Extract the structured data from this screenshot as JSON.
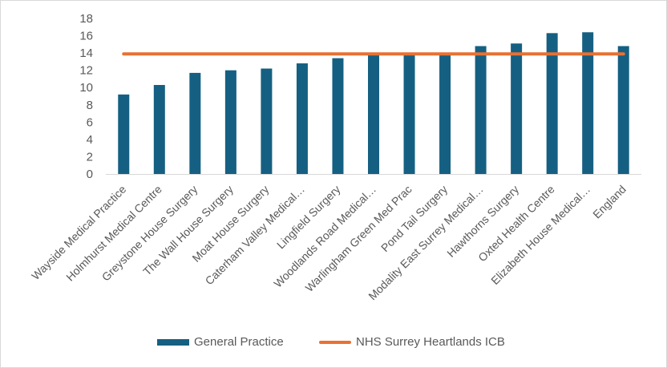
{
  "chart_data": {
    "type": "bar",
    "title": "",
    "xlabel": "",
    "ylabel": "",
    "ylim": [
      0,
      18
    ],
    "yticks": [
      0,
      2,
      4,
      6,
      8,
      10,
      12,
      14,
      16,
      18
    ],
    "grid": false,
    "legend_position": "bottom",
    "categories": [
      "Wayside Medical Practice",
      "Holmhurst Medical Centre",
      "Greystone House Surgery",
      "The Wall House Surgery",
      "Moat House Surgery",
      "Caterham Valley Medical…",
      "Lingfield Surgery",
      "Woodlands Road Medical…",
      "Warlingham Green Med Prac",
      "Pond Tail Surgery",
      "Modality East Surrey Medical…",
      "Hawthorns Surgery",
      "Oxted Health Centre",
      "Elizabeth House Medical…",
      "England"
    ],
    "series": [
      {
        "name": "General Practice",
        "type": "bar",
        "color": "#156082",
        "values": [
          9.2,
          10.3,
          11.7,
          12.0,
          12.2,
          12.8,
          13.4,
          13.8,
          13.9,
          13.9,
          14.8,
          15.1,
          16.3,
          16.4,
          14.8
        ]
      },
      {
        "name": "NHS Surrey Heartlands ICB",
        "type": "line",
        "color": "#E97132",
        "values": [
          13.9,
          13.9,
          13.9,
          13.9,
          13.9,
          13.9,
          13.9,
          13.9,
          13.9,
          13.9,
          13.9,
          13.9,
          13.9,
          13.9,
          13.9
        ]
      }
    ]
  }
}
